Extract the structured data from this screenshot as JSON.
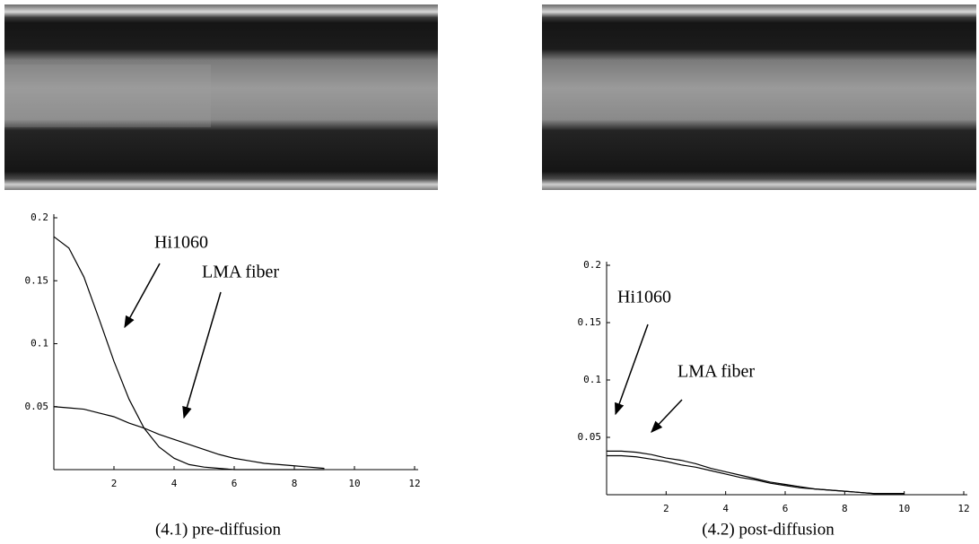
{
  "chart_data": [
    {
      "type": "line",
      "caption": "(4.1) pre-diffusion",
      "annotations": [
        "Hi1060",
        "LMA fiber"
      ],
      "x": [
        0,
        0.5,
        1,
        1.5,
        2,
        2.5,
        3,
        3.5,
        4,
        4.5,
        5,
        5.5,
        6,
        6.5,
        7,
        7.5,
        8,
        8.5,
        9
      ],
      "series": [
        {
          "name": "Hi1060",
          "color": "#000000",
          "values": [
            0.185,
            0.176,
            0.153,
            0.12,
            0.086,
            0.056,
            0.033,
            0.018,
            0.009,
            0.004,
            0.002,
            0.001,
            0,
            0,
            0,
            0,
            0,
            0,
            0
          ]
        },
        {
          "name": "LMA fiber",
          "color": "#000000",
          "values": [
            0.05,
            0.049,
            0.048,
            0.045,
            0.042,
            0.037,
            0.033,
            0.028,
            0.024,
            0.02,
            0.016,
            0.012,
            0.009,
            0.007,
            0.005,
            0.004,
            0.003,
            0.002,
            0.001
          ]
        }
      ],
      "xlim": [
        0,
        12
      ],
      "ylim": [
        0,
        0.2
      ],
      "xticks": [
        2,
        4,
        6,
        8,
        10,
        12
      ],
      "yticks": [
        0.05,
        0.1,
        0.15,
        0.2
      ]
    },
    {
      "type": "line",
      "caption": "(4.2) post-diffusion",
      "annotations": [
        "Hi1060",
        "LMA fiber"
      ],
      "x": [
        0,
        0.5,
        1,
        1.5,
        2,
        2.5,
        3,
        3.5,
        4,
        4.5,
        5,
        5.5,
        6,
        6.5,
        7,
        7.5,
        8,
        8.5,
        9,
        9.5,
        10
      ],
      "series": [
        {
          "name": "Hi1060",
          "color": "#000000",
          "values": [
            0.038,
            0.038,
            0.037,
            0.035,
            0.032,
            0.03,
            0.027,
            0.023,
            0.02,
            0.017,
            0.014,
            0.011,
            0.009,
            0.007,
            0.005,
            0.004,
            0.003,
            0.002,
            0.001,
            0.001,
            0.001
          ]
        },
        {
          "name": "LMA fiber",
          "color": "#000000",
          "values": [
            0.034,
            0.034,
            0.033,
            0.031,
            0.029,
            0.026,
            0.024,
            0.021,
            0.018,
            0.015,
            0.013,
            0.01,
            0.008,
            0.006,
            0.005,
            0.004,
            0.003,
            0.002,
            0.001,
            0.001,
            0.001
          ]
        }
      ],
      "xlim": [
        0,
        12
      ],
      "ylim": [
        0,
        0.2
      ],
      "xticks": [
        2,
        4,
        6,
        8,
        10,
        12
      ],
      "yticks": [
        0.05,
        0.1,
        0.15,
        0.2
      ]
    }
  ]
}
